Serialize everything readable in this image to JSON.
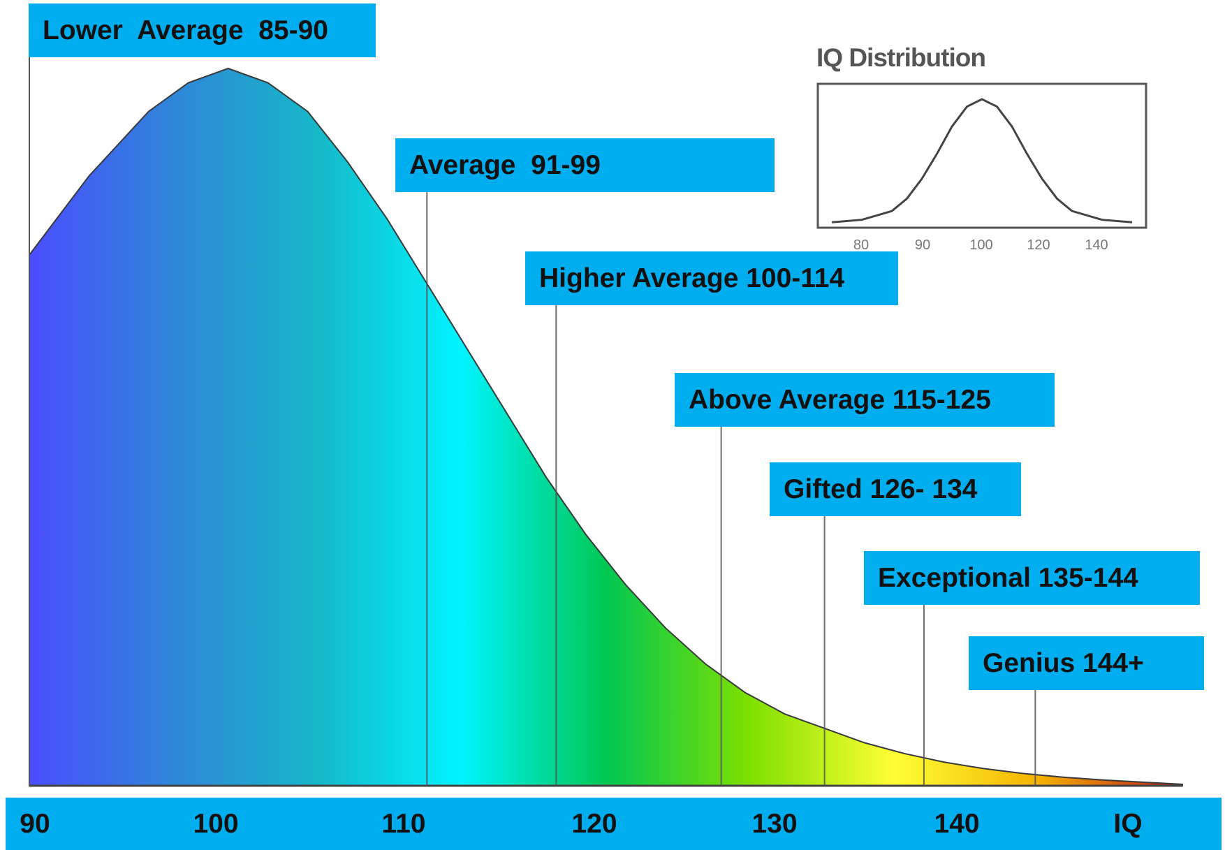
{
  "chart_data": [
    {
      "type": "area",
      "title": "",
      "xlabel": "IQ",
      "ylabel": "",
      "x_ticks": [
        "90",
        "100",
        "110",
        "120",
        "130",
        "140",
        "IQ"
      ],
      "x_tick_values": [
        90,
        100,
        110,
        120,
        130,
        140,
        148
      ],
      "xlim": [
        90,
        148
      ],
      "curve": {
        "x": [
          90,
          93,
          96,
          98,
          100,
          102,
          104,
          106,
          108,
          110,
          112,
          114,
          116,
          118,
          120,
          122,
          124,
          126,
          128,
          130,
          132,
          134,
          136,
          138,
          140,
          142,
          144,
          146,
          148
        ],
        "y": [
          0.74,
          0.85,
          0.94,
          0.98,
          1.0,
          0.98,
          0.94,
          0.87,
          0.79,
          0.7,
          0.61,
          0.52,
          0.43,
          0.35,
          0.28,
          0.22,
          0.17,
          0.13,
          0.1,
          0.08,
          0.06,
          0.045,
          0.033,
          0.024,
          0.017,
          0.012,
          0.008,
          0.005,
          0.002
        ]
      },
      "gradient_colors": [
        "#4a4dff",
        "#2f86d8",
        "#16b8c8",
        "#00f4ff",
        "#00c853",
        "#7ee000",
        "#ffff33",
        "#f4b300",
        "#c01818"
      ],
      "divider_x": [
        110,
        116.5,
        124.8,
        130,
        135,
        140.6
      ],
      "bands": [
        {
          "label": "Lower  Average  85-90"
        },
        {
          "label": "Average  91-99"
        },
        {
          "label": "Higher Average 100-114"
        },
        {
          "label": "Above Average 115-125"
        },
        {
          "label": "Gifted 126- 134"
        },
        {
          "label": "Exceptional 135-144"
        },
        {
          "label": "Genius 144+"
        }
      ],
      "label_color": "#00aeef"
    },
    {
      "type": "line",
      "title": "IQ Distribution",
      "x_ticks": [
        "80",
        "90",
        "100",
        "120",
        "140"
      ],
      "xlim": [
        50,
        150
      ],
      "ylim": [
        0,
        1
      ],
      "series": [
        {
          "x": [
            50,
            60,
            70,
            75,
            80,
            85,
            90,
            95,
            100,
            105,
            110,
            115,
            120,
            125,
            130,
            140,
            150
          ],
          "y": [
            0.01,
            0.03,
            0.1,
            0.2,
            0.36,
            0.56,
            0.78,
            0.94,
            1.0,
            0.94,
            0.78,
            0.56,
            0.36,
            0.2,
            0.1,
            0.03,
            0.01
          ]
        }
      ]
    }
  ]
}
